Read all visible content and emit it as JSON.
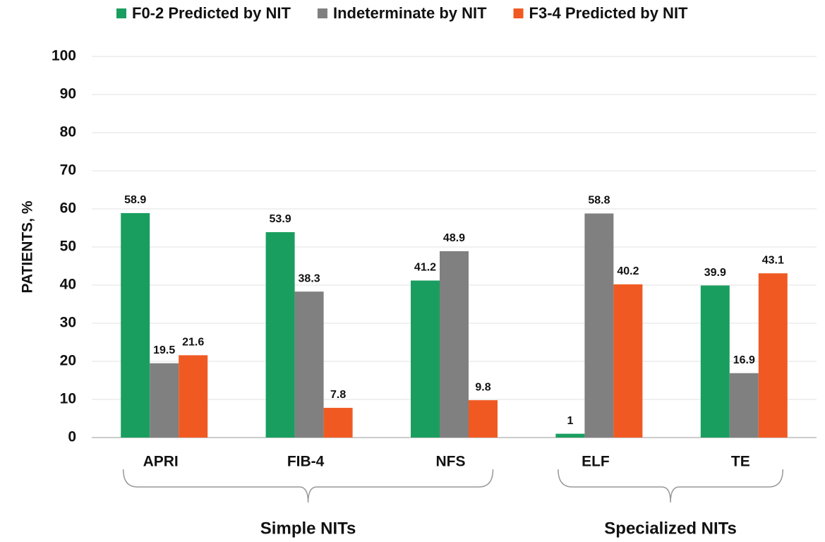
{
  "chart_data": {
    "type": "bar",
    "y_label": "PATIENTS, %",
    "categories": [
      "APRI",
      "FIB-4",
      "NFS",
      "ELF",
      "TE"
    ],
    "series": [
      {
        "name": "F0-2 Predicted by NIT",
        "color": "#1a9e5f",
        "values": [
          58.9,
          53.9,
          41.2,
          1,
          39.9
        ]
      },
      {
        "name": "Indeterminate by NIT",
        "color": "#808080",
        "values": [
          19.5,
          38.3,
          48.9,
          58.8,
          16.9
        ]
      },
      {
        "name": "F3-4 Predicted by NIT",
        "color": "#f05a22",
        "values": [
          21.6,
          7.8,
          9.8,
          40.2,
          43.1
        ]
      }
    ],
    "groups": [
      {
        "label": "Simple NITs",
        "size": 3
      },
      {
        "label": "Specialized NITs",
        "size": 2
      }
    ],
    "ylim": [
      0,
      100
    ],
    "yticks": [
      0,
      10,
      20,
      30,
      40,
      50,
      60,
      70,
      80,
      90,
      100
    ],
    "grid": true,
    "legend": "top"
  }
}
